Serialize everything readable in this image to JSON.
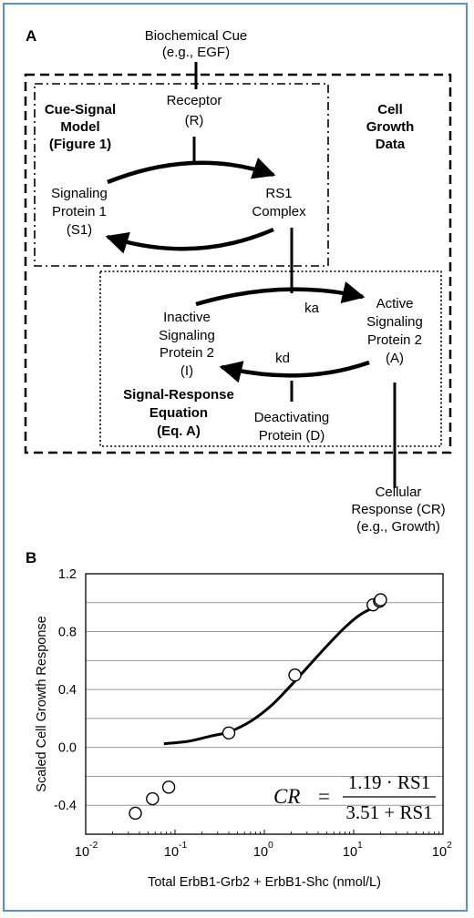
{
  "panel_a": {
    "label": "A",
    "cue": [
      "Biochemical Cue",
      "(e.g., EGF)"
    ],
    "receptor": [
      "Receptor",
      "(R)"
    ],
    "cue_signal_model": [
      "Cue-Signal",
      "Model",
      "(Figure 1)"
    ],
    "cell_growth_data": [
      "Cell",
      "Growth",
      "Data"
    ],
    "signaling_protein_1": [
      "Signaling",
      "Protein 1",
      "(S1)"
    ],
    "rs1_complex": [
      "RS1",
      "Complex"
    ],
    "inactive_protein_2": [
      "Inactive",
      "Signaling",
      "Protein 2",
      "(I)"
    ],
    "active_protein_2": [
      "Active",
      "Signaling",
      "Protein 2",
      "(A)"
    ],
    "ka": "ka",
    "kd": "kd",
    "signal_response_equation": [
      "Signal-Response",
      "Equation",
      "(Eq. A)"
    ],
    "deactivating_protein": [
      "Deactivating",
      "Protein (D)"
    ],
    "cellular_response": [
      "Cellular",
      "Response (CR)",
      "(e.g., Growth)"
    ]
  },
  "panel_b": {
    "label": "B",
    "equation": {
      "lhs": "CR",
      "equals": "=",
      "numerator": "1.19 · RS1",
      "denominator": "3.51 + RS1"
    }
  },
  "chart_data": {
    "type": "scatter",
    "title": "",
    "xlabel": "Total ErbB1-Grb2 + ErbB1-Shc (nmol/L)",
    "ylabel": "Scaled Cell Growth Response",
    "xscale": "log",
    "xlim": [
      0.01,
      100
    ],
    "ylim": [
      -0.6,
      1.2
    ],
    "x_ticks": [
      "10",
      "10",
      "10",
      "10",
      "10"
    ],
    "x_tick_exponents": [
      "-2",
      "-1",
      "0",
      "1",
      "2"
    ],
    "y_ticks": [
      "1.2",
      "0.8",
      "0.4",
      "0.0",
      "-0.4"
    ],
    "y_tick_values": [
      1.2,
      0.8,
      0.4,
      0.0,
      -0.4
    ],
    "grid": "horizontal",
    "series": [
      {
        "kind": "points",
        "x": [
          0.036,
          0.056,
          0.085,
          0.4,
          2.2,
          16.5,
          19.5,
          20.0
        ],
        "y": [
          -0.455,
          -0.355,
          -0.275,
          0.1,
          0.5,
          0.985,
          1.01,
          1.02
        ]
      },
      {
        "kind": "model-fit",
        "equation": "CR = 1.19·RS1/(3.51+RS1)",
        "x": [
          0.075,
          0.14,
          0.25,
          0.4,
          0.7,
          1.2,
          2.0,
          3.0,
          5.0,
          8.0,
          12.0,
          18.0
        ],
        "y": [
          0.025,
          0.042,
          0.078,
          0.107,
          0.18,
          0.29,
          0.43,
          0.55,
          0.7,
          0.83,
          0.92,
          0.975
        ]
      }
    ]
  },
  "colors": {
    "frame": "#5b8fd3",
    "ink": "#000000",
    "grid": "#999999"
  }
}
